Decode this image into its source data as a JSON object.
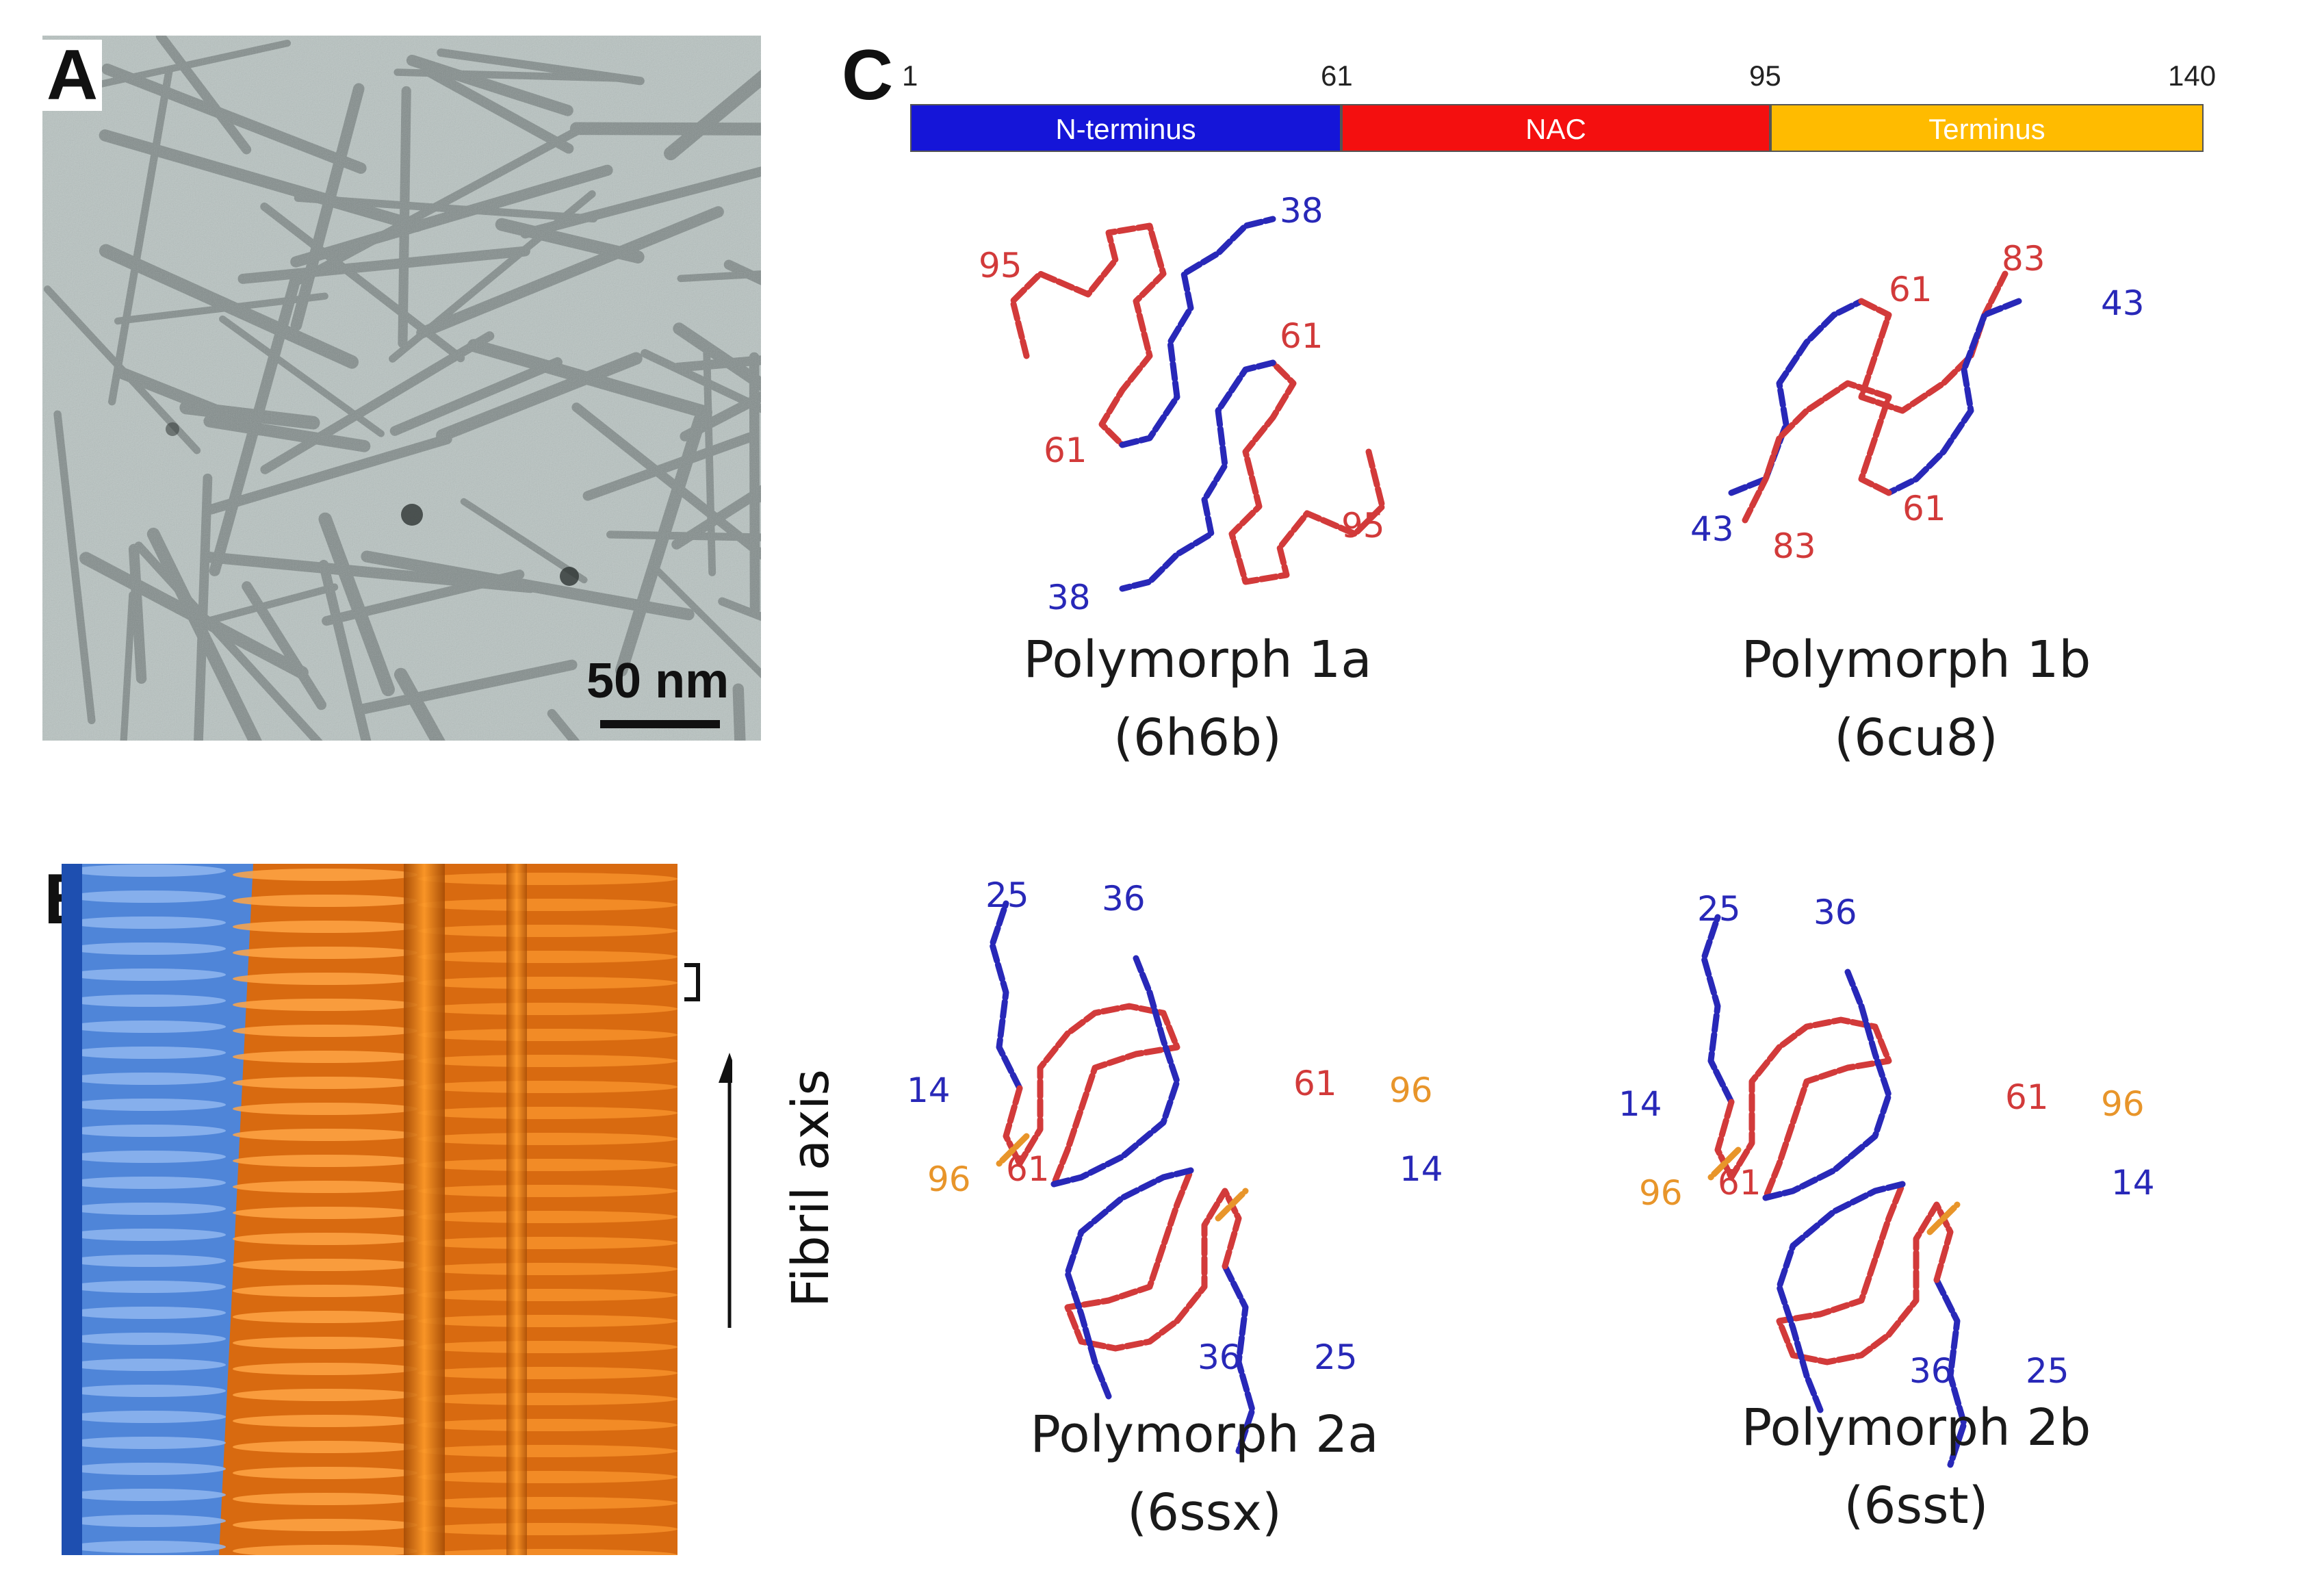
{
  "panels": {
    "a": {
      "label": "A",
      "scale_bar": "50 nm"
    },
    "b": {
      "label": "B",
      "axis_label": "Fibril axis"
    },
    "c": {
      "label": "C",
      "domain_bar": {
        "ticks": [
          "1",
          "61",
          "95",
          "140"
        ],
        "segments": [
          {
            "name": "N-terminus",
            "color": "#1515d8",
            "text_color": "#ffffff"
          },
          {
            "name": "NAC",
            "color": "#f40f0f",
            "text_color": "#ffffff"
          },
          {
            "name": "Terminus",
            "color": "#ffbb00",
            "text_color": "#ffffff"
          }
        ]
      },
      "polymorphs": [
        {
          "name": "Polymorph 1a",
          "pdb": "(6h6b)",
          "residue_labels": [
            "38",
            "95",
            "61",
            "61",
            "95",
            "38"
          ]
        },
        {
          "name": "Polymorph 1b",
          "pdb": "(6cu8)",
          "residue_labels": [
            "61",
            "83",
            "43",
            "43",
            "83",
            "61"
          ]
        },
        {
          "name": "Polymorph 2a",
          "pdb": "(6ssx)",
          "residue_labels": [
            "25",
            "36",
            "14",
            "96",
            "61",
            "61",
            "96",
            "14",
            "36",
            "25"
          ]
        },
        {
          "name": "Polymorph 2b",
          "pdb": "(6sst)",
          "residue_labels": [
            "25",
            "36",
            "14",
            "96",
            "61",
            "61",
            "96",
            "14",
            "36",
            "25"
          ]
        }
      ]
    }
  },
  "colors": {
    "n_terminus": "#2828b8",
    "nac": "#d23a3a",
    "c_terminus": "#e8952a",
    "em_background": "#b9c4c2",
    "density_blue": "#5b8fe0",
    "density_orange": "#e07812"
  }
}
